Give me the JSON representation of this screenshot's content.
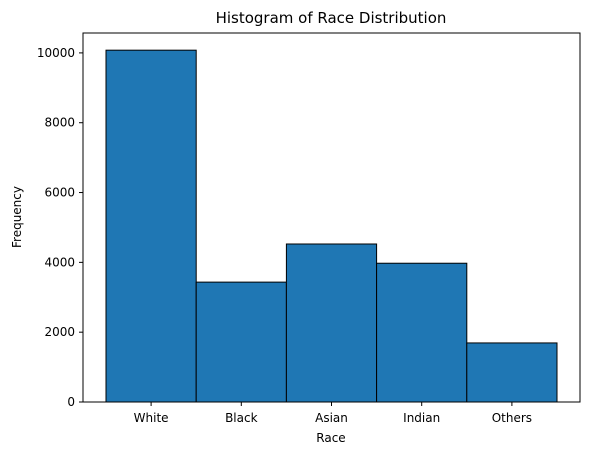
{
  "chart_data": {
    "type": "bar",
    "title": "Histogram of Race Distribution",
    "xlabel": "Race",
    "ylabel": "Frequency",
    "categories": [
      "White",
      "Black",
      "Asian",
      "Indian",
      "Others"
    ],
    "values": [
      10078,
      3434,
      4526,
      3975,
      1692
    ],
    "ylim": [
      0,
      10570
    ],
    "yticks": [
      0,
      2000,
      4000,
      6000,
      8000,
      10000
    ],
    "bar_color": "#1f77b4",
    "edge_color": "#000000",
    "grid": false
  }
}
